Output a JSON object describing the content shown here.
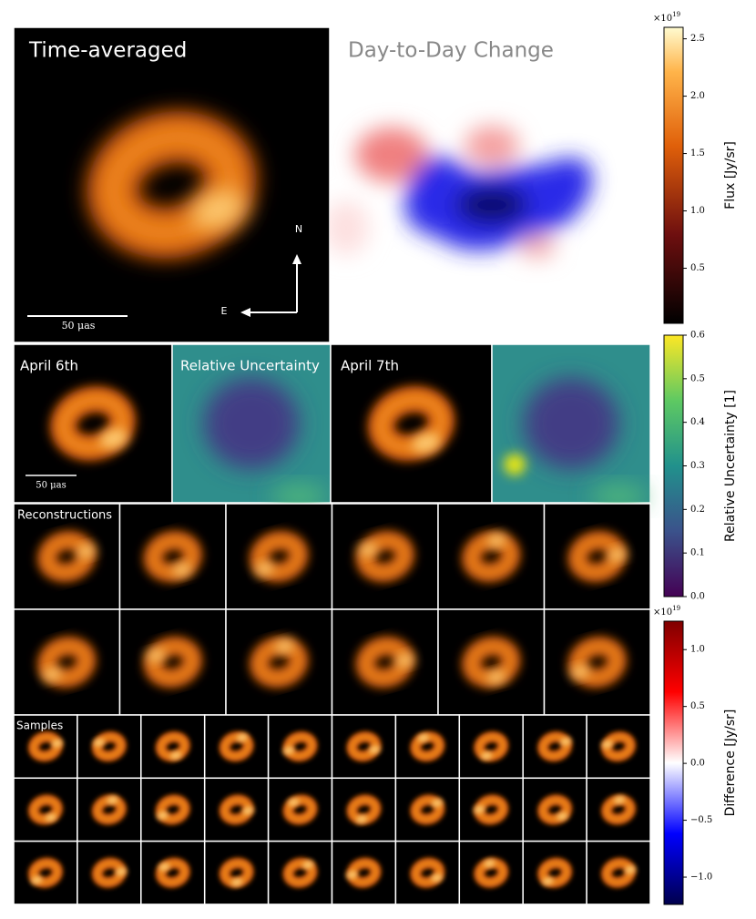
{
  "panels": {
    "time_averaged": "Time-averaged",
    "day_to_day": "Day-to-Day Change",
    "north": "N",
    "east": "E",
    "scale_bar": "50 μas",
    "april6": "April 6th",
    "uncertainty": "Relative Uncertainty",
    "april7": "April 7th",
    "reconstructions": "Reconstructions",
    "samples": "Samples"
  },
  "colorbars": [
    {
      "label": "Flux [Jy/sr]",
      "multiplier": {
        "base": "×10",
        "exponent": "19"
      },
      "lim": [
        0.02,
        2.6
      ],
      "ticks": [
        0.5,
        {
          "value": 1,
          "label": "1.0"
        },
        1.5,
        {
          "value": 2,
          "label": "2.0"
        },
        2.5
      ]
    },
    {
      "label": "Relative Uncertainty [1]",
      "lim": [
        0,
        0.6
      ],
      "ticks": [
        {
          "value": 0,
          "label": "0.0"
        },
        0.1,
        0.2,
        0.3,
        0.4,
        0.5,
        0.6
      ]
    },
    {
      "label": "Difference [Jy/sr]",
      "multiplier": {
        "base": "×10",
        "exponent": "19"
      },
      "lim": [
        -1.24,
        1.25
      ],
      "ticks": [
        {
          "value": -1,
          "label": "−1.0"
        },
        {
          "value": -0.5,
          "label": "−0.5"
        },
        {
          "value": 0,
          "label": "0.0"
        },
        0.5,
        {
          "value": 1,
          "label": "1.0"
        }
      ]
    }
  ]
}
